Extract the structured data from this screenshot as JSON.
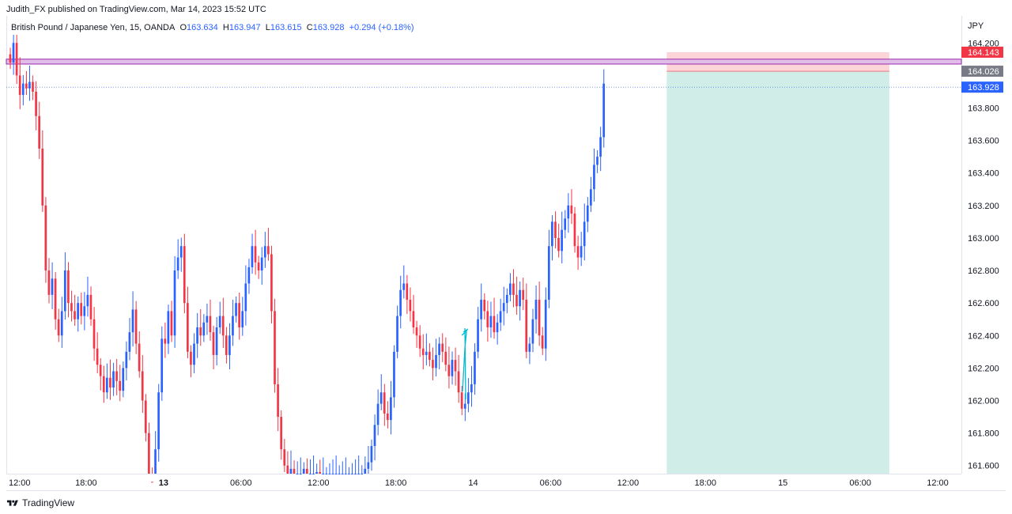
{
  "header": {
    "publisher": "Judith_FX published on TradingView.com, Mar 14, 2023 15:52 UTC"
  },
  "legend": {
    "symbol": "British Pound / Japanese Yen, 15, OANDA",
    "open_label": "O",
    "open": "163.634",
    "high_label": "H",
    "high": "163.947",
    "low_label": "L",
    "low": "163.615",
    "close_label": "C",
    "close": "163.928",
    "change": "+0.294 (+0.18%)"
  },
  "footer": {
    "brand": "TradingView"
  },
  "colors": {
    "up": "#2962ff",
    "down": "#f23645",
    "stop_zone": "#fdd5d8",
    "target_zone": "#d1ede7",
    "resistance_band": "#e1bee7"
  },
  "chart_data": {
    "type": "candlestick",
    "currency": "JPY",
    "y_ticks": [
      "164.200",
      "163.800",
      "163.600",
      "163.400",
      "163.200",
      "163.000",
      "162.800",
      "162.600",
      "162.400",
      "162.200",
      "162.000",
      "161.800",
      "161.600"
    ],
    "ylim": [
      161.55,
      164.25
    ],
    "x_ticks": [
      {
        "label": "12:00",
        "bar": 0
      },
      {
        "label": "18:00",
        "bar": 24
      },
      {
        "label": "13",
        "bar": 48,
        "bold": true
      },
      {
        "label": "06:00",
        "bar": 72
      },
      {
        "label": "12:00",
        "bar": 96
      },
      {
        "label": "18:00",
        "bar": 120
      },
      {
        "label": "14",
        "bar": 144
      },
      {
        "label": "06:00",
        "bar": 168
      },
      {
        "label": "12:00",
        "bar": 192
      },
      {
        "label": "18:00",
        "bar": 216
      },
      {
        "label": "15",
        "bar": 240
      },
      {
        "label": "06:00",
        "bar": 264
      },
      {
        "label": "12:00",
        "bar": 288
      }
    ],
    "price_labels": [
      {
        "value": "164.143",
        "price": 164.143,
        "color": "#f23645"
      },
      {
        "value": "164.026",
        "price": 164.026,
        "color": "#787b86"
      },
      {
        "value": "163.928",
        "price": 163.928,
        "color": "#2962ff"
      }
    ],
    "resistance_band": [
      164.07,
      164.1
    ],
    "position": {
      "start_bar": 204,
      "end_bar": 273,
      "entry": 164.026,
      "stop": 164.143,
      "target": 161.55
    },
    "close_line": 163.928,
    "closes": [
      164.08,
      164.2,
      164.0,
      163.88,
      163.95,
      163.92,
      163.96,
      163.9,
      163.75,
      163.55,
      163.2,
      162.8,
      162.65,
      162.75,
      162.5,
      162.4,
      162.55,
      162.8,
      162.6,
      162.55,
      162.5,
      162.6,
      162.52,
      162.58,
      162.65,
      162.5,
      162.32,
      162.22,
      162.15,
      162.05,
      162.14,
      162.08,
      162.18,
      162.12,
      162.06,
      162.2,
      162.3,
      162.42,
      162.56,
      162.35,
      162.18,
      162.0,
      161.8,
      161.5,
      161.4,
      161.7,
      162.05,
      162.38,
      162.35,
      162.55,
      162.4,
      162.8,
      162.88,
      162.95,
      162.6,
      162.3,
      162.22,
      162.35,
      162.45,
      162.4,
      162.48,
      162.52,
      162.42,
      162.28,
      162.45,
      162.52,
      162.4,
      162.28,
      162.4,
      162.52,
      162.6,
      162.45,
      162.55,
      162.72,
      162.82,
      162.95,
      162.85,
      162.8,
      162.88,
      162.95,
      162.9,
      162.55,
      162.1,
      161.9,
      161.7,
      161.6,
      161.55,
      161.58,
      161.55,
      161.55,
      161.55,
      161.58,
      161.55,
      161.55,
      161.55,
      161.56,
      161.55,
      161.55,
      161.55,
      161.55,
      161.55,
      161.55,
      161.55,
      161.55,
      161.55,
      161.55,
      161.55,
      161.55,
      161.55,
      161.55,
      161.58,
      161.62,
      161.72,
      161.85,
      161.98,
      162.05,
      161.92,
      161.88,
      162.02,
      162.3,
      162.52,
      162.68,
      162.72,
      162.62,
      162.55,
      162.45,
      162.4,
      162.32,
      162.28,
      162.3,
      162.25,
      162.2,
      162.28,
      162.35,
      162.3,
      162.22,
      162.15,
      162.25,
      162.18,
      162.05,
      161.95,
      161.98,
      162.05,
      162.1,
      162.3,
      162.5,
      162.62,
      162.55,
      162.45,
      162.52,
      162.42,
      162.48,
      162.55,
      162.6,
      162.65,
      162.72,
      162.65,
      162.58,
      162.68,
      162.62,
      162.3,
      162.35,
      162.5,
      162.62,
      162.4,
      162.32,
      162.62,
      162.95,
      163.1,
      163.0,
      162.92,
      163.05,
      163.12,
      163.2,
      163.15,
      162.95,
      162.88,
      162.95,
      163.1,
      163.2,
      163.3,
      163.45,
      163.5,
      163.62,
      163.95
    ]
  }
}
